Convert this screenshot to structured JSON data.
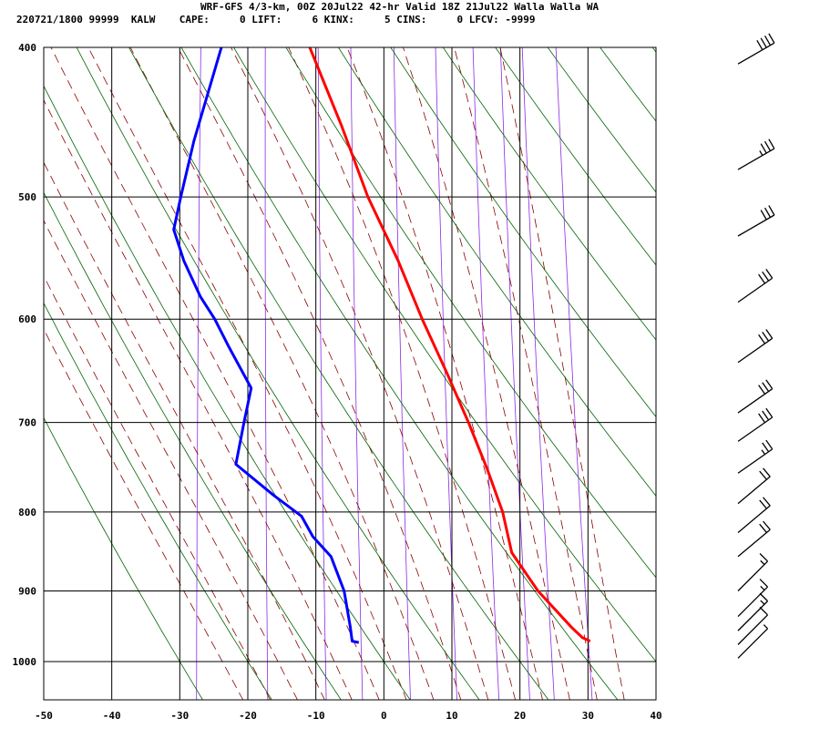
{
  "header": {
    "title": "WRF-GFS 4/3-km, 00Z 20Jul22 42-hr Valid 18Z 21Jul22 Walla Walla WA",
    "info": "220721/1800 99999  KALW    CAPE:     0 LIFT:     6 KINX:     5 CINS:     0 LFCV: -9999"
  },
  "colors": {
    "temperature": "#ff0000",
    "dewpoint": "#0000ff",
    "isotherm": "#000000",
    "dry_adiabat": "#006400",
    "moist_adiabat": "#8b0000",
    "mixing_ratio": "#8a2be2",
    "wind_barb": "#000000"
  },
  "chart_data": {
    "type": "skew-t",
    "x_ticks": [
      -50,
      -40,
      -30,
      -20,
      -10,
      0,
      10,
      20,
      30,
      40
    ],
    "y_ticks": [
      400,
      500,
      600,
      700,
      800,
      900,
      1000
    ],
    "x_range": [
      -50,
      40
    ],
    "y_range": [
      400,
      1050
    ],
    "y_scale": "log",
    "grid": true,
    "series": [
      {
        "key": "temperature",
        "points": [
          [
            400,
            -21.0
          ],
          [
            450,
            -15.0
          ],
          [
            500,
            -10.0
          ],
          [
            550,
            -4.5
          ],
          [
            600,
            0.0
          ],
          [
            650,
            4.5
          ],
          [
            700,
            8.5
          ],
          [
            750,
            12.0
          ],
          [
            800,
            15.0
          ],
          [
            850,
            17.0
          ],
          [
            900,
            21.5
          ],
          [
            950,
            27.0
          ],
          [
            965,
            28.8
          ],
          [
            970,
            30.0
          ]
        ]
      },
      {
        "key": "dewpoint",
        "points": [
          [
            400,
            -34.0
          ],
          [
            460,
            -36.5
          ],
          [
            500,
            -37.5
          ],
          [
            525,
            -38.0
          ],
          [
            550,
            -36.0
          ],
          [
            580,
            -33.0
          ],
          [
            600,
            -30.5
          ],
          [
            625,
            -28.0
          ],
          [
            665,
            -24.0
          ],
          [
            700,
            -24.5
          ],
          [
            745,
            -25.0
          ],
          [
            780,
            -19.0
          ],
          [
            805,
            -14.5
          ],
          [
            830,
            -12.5
          ],
          [
            855,
            -9.5
          ],
          [
            900,
            -7.0
          ],
          [
            950,
            -5.5
          ],
          [
            970,
            -5.0
          ],
          [
            972,
            -4.0
          ]
        ]
      }
    ],
    "wind_barbs": [
      {
        "p": 410,
        "dir": 240,
        "speed": 40
      },
      {
        "p": 480,
        "dir": 240,
        "speed": 35
      },
      {
        "p": 530,
        "dir": 240,
        "speed": 30
      },
      {
        "p": 585,
        "dir": 235,
        "speed": 30
      },
      {
        "p": 640,
        "dir": 235,
        "speed": 30
      },
      {
        "p": 690,
        "dir": 235,
        "speed": 30
      },
      {
        "p": 720,
        "dir": 235,
        "speed": 30
      },
      {
        "p": 755,
        "dir": 235,
        "speed": 25
      },
      {
        "p": 790,
        "dir": 230,
        "speed": 20
      },
      {
        "p": 825,
        "dir": 230,
        "speed": 20
      },
      {
        "p": 855,
        "dir": 230,
        "speed": 20
      },
      {
        "p": 900,
        "dir": 225,
        "speed": 15
      },
      {
        "p": 935,
        "dir": 225,
        "speed": 15
      },
      {
        "p": 955,
        "dir": 225,
        "speed": 15
      },
      {
        "p": 975,
        "dir": 225,
        "speed": 10
      },
      {
        "p": 995,
        "dir": 225,
        "speed": 5
      }
    ]
  }
}
